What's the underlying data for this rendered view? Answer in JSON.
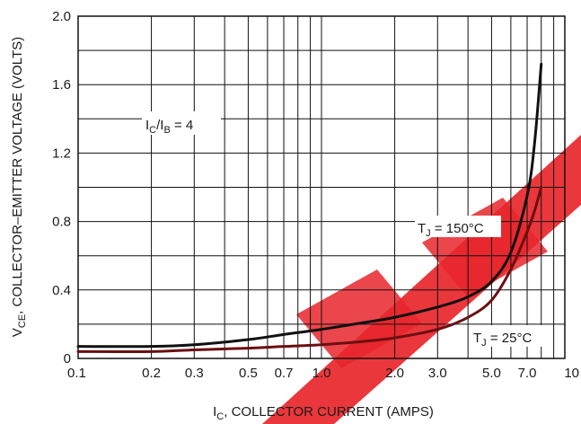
{
  "chart_data": {
    "type": "line",
    "xlabel_main": "I",
    "xlabel_sub": "C",
    "xlabel_rest": ", COLLECTOR CURRENT (AMPS)",
    "ylabel_main": "V",
    "ylabel_sub": "CE",
    "ylabel_rest": ", COLLECTOR–EMITTER VOLTAGE (VOLTS)",
    "x_scale": "log",
    "xlim": [
      0.1,
      10
    ],
    "ylim": [
      0,
      2.0
    ],
    "grid": true,
    "x_ticks": [
      {
        "value": 0.1,
        "label": "0.1"
      },
      {
        "value": 0.2,
        "label": "0.2"
      },
      {
        "value": 0.3,
        "label": "0.3"
      },
      {
        "value": 0.5,
        "label": "0.5"
      },
      {
        "value": 0.7,
        "label": "0.7"
      },
      {
        "value": 1.0,
        "label": "1.0"
      },
      {
        "value": 2.0,
        "label": "2.0"
      },
      {
        "value": 3.0,
        "label": "3.0"
      },
      {
        "value": 5.0,
        "label": "5.0"
      },
      {
        "value": 7.0,
        "label": "7.0"
      },
      {
        "value": 10,
        "label": "10"
      }
    ],
    "y_ticks": [
      {
        "value": 0,
        "label": "0"
      },
      {
        "value": 0.4,
        "label": "0.4"
      },
      {
        "value": 0.8,
        "label": "0.8"
      },
      {
        "value": 1.2,
        "label": "1.2"
      },
      {
        "value": 1.6,
        "label": "1.6"
      },
      {
        "value": 2.0,
        "label": "2.0"
      }
    ],
    "annotations": [
      {
        "id": "ratio",
        "main": "I",
        "sub": "C",
        "mid": "/I",
        "sub2": "B",
        "rest": " = 4"
      },
      {
        "id": "tj150",
        "main": "T",
        "sub": "J",
        "rest": " = 150°C"
      },
      {
        "id": "tj25",
        "main": "T",
        "sub": "J",
        "rest": " = 25°C"
      }
    ],
    "series": [
      {
        "id": "tj25",
        "x": [
          0.1,
          0.2,
          0.3,
          0.5,
          0.7,
          1.0,
          1.5,
          2.0,
          3.0,
          4.0,
          5.0,
          6.0,
          7.0,
          7.5,
          8.0
        ],
        "y": [
          0.07,
          0.07,
          0.08,
          0.11,
          0.14,
          0.17,
          0.21,
          0.24,
          0.3,
          0.36,
          0.45,
          0.62,
          0.95,
          1.25,
          1.72
        ]
      },
      {
        "id": "tj150",
        "x": [
          0.1,
          0.2,
          0.3,
          0.5,
          0.7,
          1.0,
          1.5,
          2.0,
          3.0,
          4.0,
          5.0,
          6.0,
          7.0,
          7.5,
          8.0
        ],
        "y": [
          0.04,
          0.04,
          0.05,
          0.06,
          0.07,
          0.08,
          0.1,
          0.12,
          0.17,
          0.24,
          0.34,
          0.52,
          0.74,
          0.86,
          1.0
        ]
      }
    ],
    "colors": {
      "tj25": "#111111",
      "tj150": "#6b0f12",
      "watermark": "#e8262b"
    }
  }
}
